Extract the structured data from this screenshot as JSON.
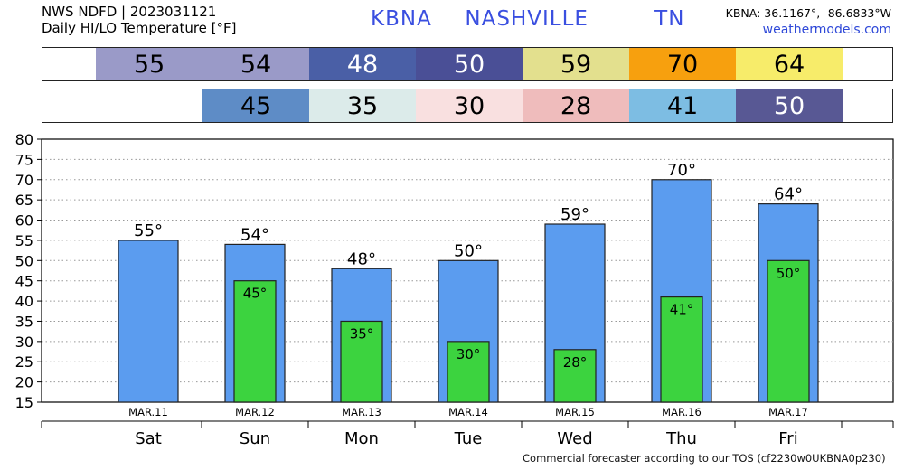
{
  "header": {
    "line1": "NWS NDFD | 2023031121",
    "line2": "Daily HI/LO Temperature [°F]",
    "station": "KBNA  NASHVILLE    TN",
    "coords": "KBNA: 36.1167°, -86.6833°W",
    "site": "weathermodels.com"
  },
  "hi_strip": [
    {
      "value": "55",
      "color": "#9a9ac8",
      "text_color": "#000000"
    },
    {
      "value": "54",
      "color": "#9a9ac8",
      "text_color": "#000000"
    },
    {
      "value": "48",
      "color": "#4a5fa6",
      "text_color": "#ffffff"
    },
    {
      "value": "50",
      "color": "#4a4f96",
      "text_color": "#ffffff"
    },
    {
      "value": "59",
      "color": "#e3e08e",
      "text_color": "#000000"
    },
    {
      "value": "70",
      "color": "#f7a00e",
      "text_color": "#000000"
    },
    {
      "value": "64",
      "color": "#f7ec6a",
      "text_color": "#000000"
    }
  ],
  "lo_strip": [
    {
      "value": "45",
      "color": "#5e8cc6",
      "text_color": "#000000"
    },
    {
      "value": "35",
      "color": "#dcebea",
      "text_color": "#000000"
    },
    {
      "value": "30",
      "color": "#f9e0e0",
      "text_color": "#000000"
    },
    {
      "value": "28",
      "color": "#efbcbc",
      "text_color": "#000000"
    },
    {
      "value": "41",
      "color": "#7dbde3",
      "text_color": "#000000"
    },
    {
      "value": "50",
      "color": "#585894",
      "text_color": "#ffffff"
    }
  ],
  "chart_data": {
    "type": "bar",
    "categories": [
      "MAR.11",
      "MAR.12",
      "MAR.13",
      "MAR.14",
      "MAR.15",
      "MAR.16",
      "MAR.17"
    ],
    "days": [
      "Sat",
      "Sun",
      "Mon",
      "Tue",
      "Wed",
      "Thu",
      "Fri"
    ],
    "series": [
      {
        "values": [
          55,
          54,
          48,
          50,
          59,
          70,
          64
        ],
        "labels": [
          "55°",
          "54°",
          "48°",
          "50°",
          "59°",
          "70°",
          "64°"
        ],
        "color": "#5b9cef"
      },
      {
        "values": [
          null,
          45,
          35,
          30,
          28,
          41,
          50
        ],
        "labels": [
          "",
          "45°",
          "35°",
          "30°",
          "28°",
          "41°",
          "50°"
        ],
        "color": "#3cd33f"
      }
    ],
    "ylim": [
      15,
      80
    ],
    "yticks": [
      "15",
      "20",
      "25",
      "30",
      "35",
      "40",
      "45",
      "50",
      "55",
      "60",
      "65",
      "70",
      "75",
      "80"
    ],
    "grid": true
  },
  "footer": "Commercial forecaster according to our TOS (cf2230w0UKBNA0p230)"
}
